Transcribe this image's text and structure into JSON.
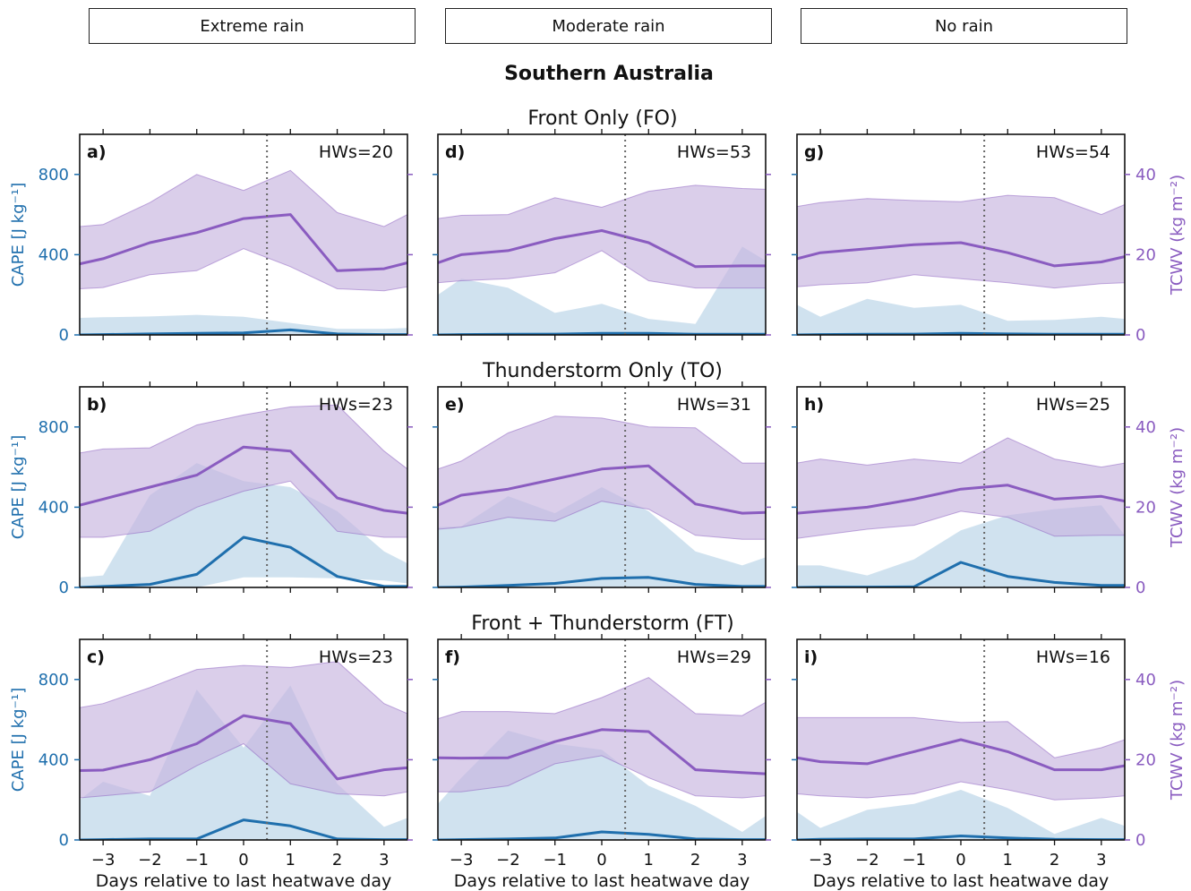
{
  "headers": [
    "Extreme rain",
    "Moderate rain",
    "No rain"
  ],
  "suptitle": "Southern Australia",
  "row_titles": [
    "Front Only (FO)",
    "Thunderstorm Only (TO)",
    "Front + Thunderstorm (FT)"
  ],
  "xlabel": "Days relative to last heatwave day",
  "ylabel_left": "CAPE [J kg⁻¹]",
  "ylabel_right": "TCWV (kg m⁻²)",
  "colors": {
    "cape": "#1f6fad",
    "cape_fill": "#b7d3e6",
    "tcwv": "#8a5cc0",
    "tcwv_fill": "#c6b3de"
  },
  "chart_data": {
    "type": "line",
    "x": [
      -3.5,
      -3,
      -2,
      -1,
      0,
      1,
      2,
      3,
      3.5
    ],
    "xticks": [
      -3,
      -2,
      -1,
      0,
      1,
      2,
      3
    ],
    "xlim": [
      -3.5,
      3.5
    ],
    "vline_x": 0.5,
    "cape_ylim": [
      0,
      1000
    ],
    "cape_yticks": [
      0,
      400,
      800
    ],
    "tcwv_ylim": [
      0,
      50
    ],
    "tcwv_yticks": [
      0,
      20,
      40
    ],
    "panels": [
      {
        "label": "a)",
        "hws": "HWs=20",
        "cape": [
          0,
          2,
          5,
          8,
          10,
          25,
          5,
          2,
          2
        ],
        "cape_lo": [
          0,
          0,
          0,
          0,
          0,
          0,
          0,
          0,
          0
        ],
        "cape_hi": [
          85,
          88,
          92,
          100,
          90,
          60,
          30,
          30,
          35
        ],
        "tcwv": [
          17.7,
          19,
          23,
          25.5,
          29,
          30,
          16,
          16.5,
          18
        ],
        "tcwv_lo": [
          11.5,
          11.8,
          15,
          16,
          21.5,
          17,
          11.5,
          11,
          12
        ],
        "tcwv_hi": [
          27,
          27.5,
          33,
          40,
          36,
          41,
          30.5,
          27,
          30
        ]
      },
      {
        "label": "d)",
        "hws": "HWs=53",
        "cape": [
          0,
          2,
          3,
          4,
          8,
          8,
          3,
          3,
          3
        ],
        "cape_lo": [
          0,
          0,
          0,
          0,
          0,
          0,
          0,
          0,
          0
        ],
        "cape_hi": [
          200,
          280,
          235,
          110,
          155,
          80,
          55,
          440,
          370
        ],
        "tcwv": [
          18,
          20,
          21,
          24,
          26,
          23,
          17,
          17.2,
          17.2
        ],
        "tcwv_lo": [
          13,
          13.5,
          14,
          15.5,
          21,
          13.5,
          11.7,
          11.7,
          11.7
        ],
        "tcwv_hi": [
          29,
          29.8,
          30,
          34.2,
          31.8,
          35.8,
          37.3,
          36.5,
          36.3
        ]
      },
      {
        "label": "g)",
        "hws": "HWs=54",
        "cape": [
          0,
          2,
          3,
          4,
          8,
          5,
          3,
          3,
          3
        ],
        "cape_lo": [
          0,
          0,
          0,
          0,
          0,
          0,
          0,
          0,
          0
        ],
        "cape_hi": [
          150,
          90,
          180,
          135,
          150,
          70,
          75,
          90,
          80
        ],
        "tcwv": [
          19,
          20.5,
          21.5,
          22.5,
          23,
          20.5,
          17.2,
          18.2,
          19.5
        ],
        "tcwv_lo": [
          12,
          12.5,
          13,
          15,
          14,
          13,
          11.7,
          12.8,
          13
        ],
        "tcwv_hi": [
          32,
          33,
          34,
          33.5,
          33.2,
          34.8,
          34.2,
          30,
          32.5
        ]
      },
      {
        "label": "b)",
        "hws": "HWs=23",
        "cape": [
          0,
          5,
          15,
          65,
          250,
          200,
          55,
          5,
          5
        ],
        "cape_lo": [
          0,
          0,
          0,
          0,
          50,
          50,
          45,
          35,
          20
        ],
        "cape_hi": [
          50,
          60,
          460,
          620,
          530,
          500,
          380,
          180,
          120
        ],
        "tcwv": [
          20.5,
          22,
          25,
          28,
          35,
          34,
          22.3,
          19.2,
          18.5
        ],
        "tcwv_lo": [
          12.5,
          12.5,
          14,
          20,
          24,
          26.5,
          14,
          12.5,
          12.5
        ],
        "tcwv_hi": [
          33.5,
          34.5,
          34.8,
          40.5,
          43,
          45,
          45.5,
          34,
          29.5
        ]
      },
      {
        "label": "e)",
        "hws": "HWs=31",
        "cape": [
          0,
          2,
          10,
          20,
          45,
          50,
          15,
          5,
          5
        ],
        "cape_lo": [
          0,
          0,
          0,
          0,
          0,
          0,
          0,
          0,
          0
        ],
        "cape_hi": [
          300,
          305,
          455,
          370,
          500,
          380,
          180,
          110,
          150
        ],
        "tcwv": [
          20.5,
          23,
          24.5,
          27,
          29.5,
          30.3,
          20.8,
          18.5,
          18.7
        ],
        "tcwv_lo": [
          14.5,
          15,
          17.5,
          16.5,
          21.5,
          19.5,
          13,
          12,
          12
        ],
        "tcwv_hi": [
          29.5,
          31.5,
          38.5,
          42.7,
          42.2,
          40,
          39.8,
          31,
          31
        ]
      },
      {
        "label": "h)",
        "hws": "HWs=25",
        "cape": [
          0,
          2,
          2,
          3,
          125,
          55,
          25,
          10,
          10
        ],
        "cape_lo": [
          0,
          0,
          0,
          0,
          0,
          0,
          0,
          0,
          0
        ],
        "cape_hi": [
          110,
          110,
          60,
          140,
          285,
          360,
          390,
          410,
          260
        ],
        "tcwv": [
          18.5,
          19,
          20,
          22,
          24.5,
          25.5,
          22,
          22.7,
          21.5
        ],
        "tcwv_lo": [
          12.2,
          13,
          14.5,
          15.5,
          19,
          17.5,
          12.8,
          13,
          13
        ],
        "tcwv_hi": [
          31,
          32,
          30.5,
          32,
          31,
          37.3,
          32,
          30,
          31
        ]
      },
      {
        "label": "c)",
        "hws": "HWs=23",
        "cape": [
          0,
          2,
          5,
          5,
          100,
          70,
          5,
          2,
          2
        ],
        "cape_lo": [
          0,
          0,
          0,
          0,
          0,
          0,
          0,
          0,
          0
        ],
        "cape_hi": [
          200,
          290,
          220,
          750,
          460,
          770,
          280,
          65,
          110
        ],
        "tcwv": [
          17.3,
          17.4,
          20,
          24,
          31,
          29,
          15.2,
          17.5,
          18
        ],
        "tcwv_lo": [
          10.5,
          11,
          12,
          18.5,
          24,
          14,
          11.5,
          11,
          12
        ],
        "tcwv_hi": [
          33,
          34,
          38,
          42.5,
          43.5,
          43,
          44.5,
          34,
          31.5
        ]
      },
      {
        "label": "f)",
        "hws": "HWs=29",
        "cape": [
          0,
          2,
          5,
          10,
          40,
          28,
          5,
          2,
          2
        ],
        "cape_lo": [
          0,
          0,
          0,
          0,
          0,
          0,
          0,
          0,
          0
        ],
        "cape_hi": [
          180,
          310,
          545,
          480,
          450,
          270,
          170,
          40,
          120
        ],
        "tcwv": [
          20.5,
          20.4,
          20.5,
          24.5,
          27.5,
          27,
          17.5,
          16.8,
          16.5
        ],
        "tcwv_lo": [
          12,
          12,
          13.5,
          19,
          21,
          15.5,
          11,
          10.5,
          11
        ],
        "tcwv_hi": [
          30.2,
          32,
          32,
          31.5,
          35.5,
          40.5,
          31.5,
          31,
          34.3
        ]
      },
      {
        "label": "i)",
        "hws": "HWs=16",
        "cape": [
          0,
          3,
          5,
          5,
          20,
          10,
          3,
          2,
          2
        ],
        "cape_lo": [
          0,
          0,
          0,
          0,
          0,
          0,
          0,
          0,
          0
        ],
        "cape_hi": [
          140,
          60,
          150,
          180,
          250,
          160,
          30,
          110,
          70
        ],
        "tcwv": [
          20.5,
          19.5,
          19,
          22,
          25,
          22,
          17.5,
          17.5,
          18.5
        ],
        "tcwv_lo": [
          11.5,
          11,
          10.5,
          11.5,
          14.5,
          12.5,
          10,
          10.5,
          11
        ],
        "tcwv_hi": [
          30.5,
          30.5,
          30.5,
          30.5,
          29.3,
          29.5,
          20.5,
          23,
          25
        ]
      }
    ]
  }
}
